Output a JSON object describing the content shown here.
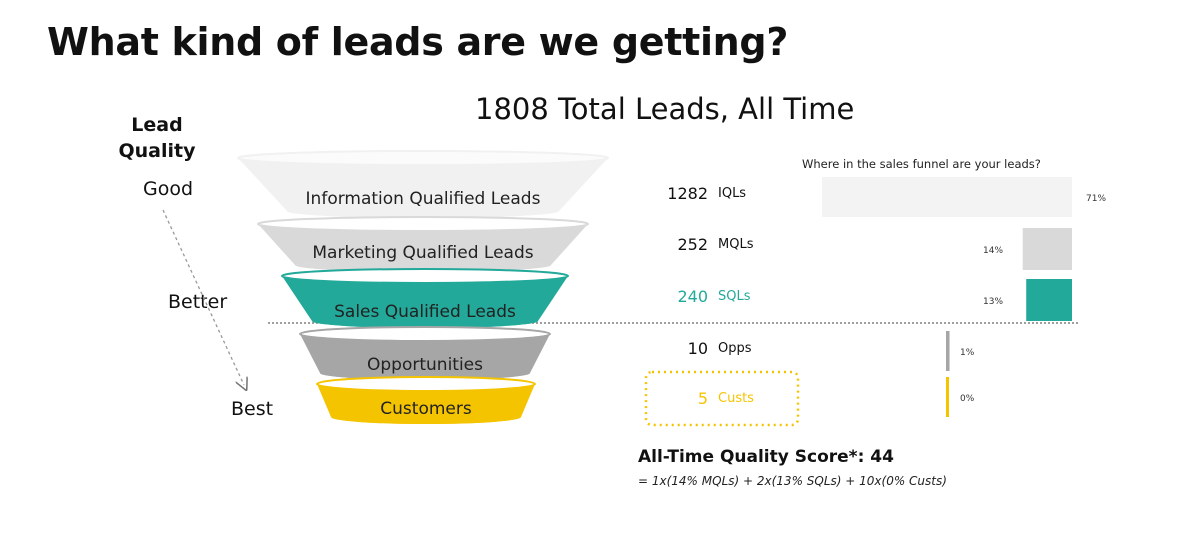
{
  "page": {
    "title": "What kind of leads are we getting?",
    "total_title": "1808 Total Leads, All Time"
  },
  "quality_axis": {
    "heading": "Lead Quality",
    "good": "Good",
    "better": "Better",
    "best": "Best"
  },
  "funnel": {
    "stages": [
      {
        "label": "Information Qualified Leads",
        "count": "1282",
        "abbr": "IQLs",
        "percent_label": "71%",
        "share": 0.71,
        "color": "#f1f1f1",
        "text_color": "#222222",
        "count_color": "#111111",
        "highlight": false
      },
      {
        "label": "Marketing Qualified Leads",
        "count": "252",
        "abbr": "MQLs",
        "percent_label": "14%",
        "share": 0.14,
        "color": "#d9d9d9",
        "text_color": "#222222",
        "count_color": "#111111",
        "highlight": false
      },
      {
        "label": "Sales Qualified Leads",
        "count": "240",
        "abbr": "SQLs",
        "percent_label": "13%",
        "share": 0.13,
        "color": "#22a99a",
        "text_color": "#222222",
        "count_color": "#22a99a",
        "highlight": false
      },
      {
        "label": "Opportunities",
        "count": "10",
        "abbr": "Opps",
        "percent_label": "1%",
        "share": 0.01,
        "color": "#a6a6a6",
        "text_color": "#222222",
        "count_color": "#111111",
        "highlight": false
      },
      {
        "label": "Customers",
        "count": "5",
        "abbr": "Custs",
        "percent_label": "0%",
        "share": 0.0,
        "color": "#f5c400",
        "text_color": "#222222",
        "count_color": "#f5c400",
        "highlight": true
      }
    ]
  },
  "chart_data": {
    "type": "bar",
    "title": "Where in the sales funnel are your leads?",
    "categories": [
      "IQLs",
      "MQLs",
      "SQLs",
      "Opps",
      "Custs"
    ],
    "values": [
      71,
      14,
      13,
      1,
      0
    ],
    "value_labels": [
      "71%",
      "14%",
      "13%",
      "1%",
      "0%"
    ],
    "orientation": "horizontal",
    "colors": [
      "#f3f3f3",
      "#d9d9d9",
      "#22a99a",
      "#a6a6a6",
      "#f5c400"
    ]
  },
  "score": {
    "headline": "All-Time Quality Score*: 44",
    "formula": "= 1x(14% MQLs) + 2x(13% SQLs) + 10x(0% Custs)"
  }
}
